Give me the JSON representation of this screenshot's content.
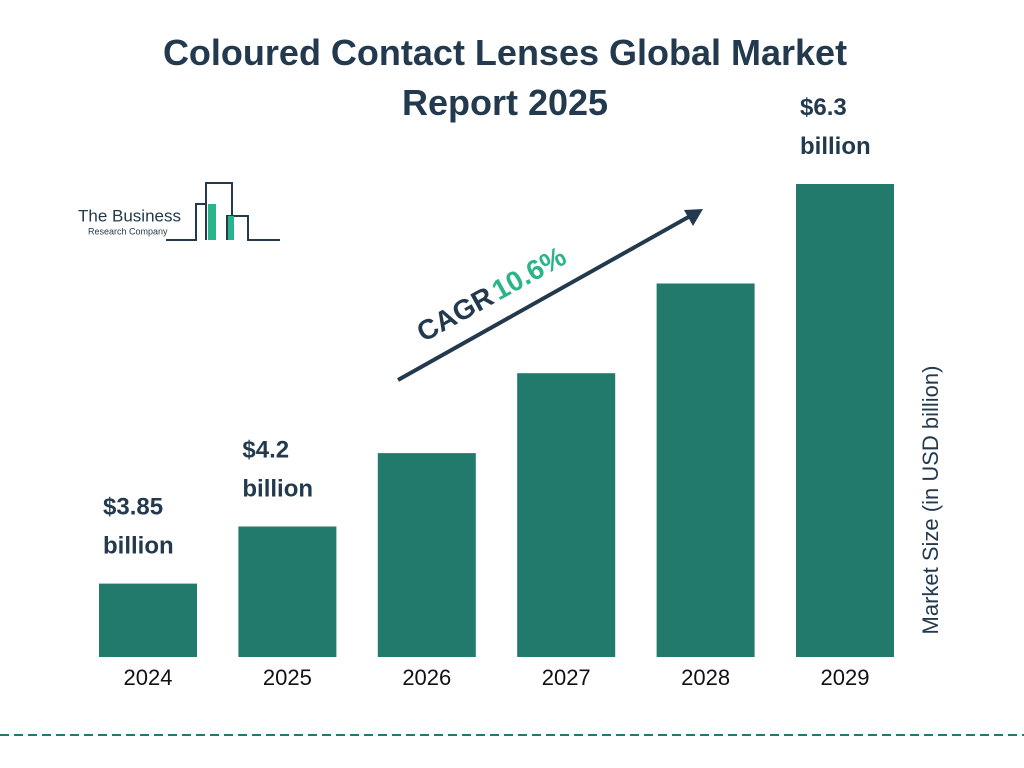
{
  "chart_data": {
    "type": "bar",
    "title": "Coloured Contact Lenses Global Market Report 2025",
    "categories": [
      "2024",
      "2025",
      "2026",
      "2027",
      "2028",
      "2029"
    ],
    "values": [
      3.85,
      4.2,
      4.65,
      5.14,
      5.69,
      6.3
    ],
    "value_labels": [
      "$3.85 billion",
      "$4.2 billion",
      null,
      null,
      null,
      "$6.3 billion"
    ],
    "color": "#217a6b",
    "ylim": [
      3.4,
      6.3
    ],
    "y_axis_label": "Market Size (in USD billion)",
    "annotations": [
      "CAGR",
      "10.6%"
    ]
  },
  "logo": {
    "line1": "The Business",
    "line2": "Research Company"
  }
}
